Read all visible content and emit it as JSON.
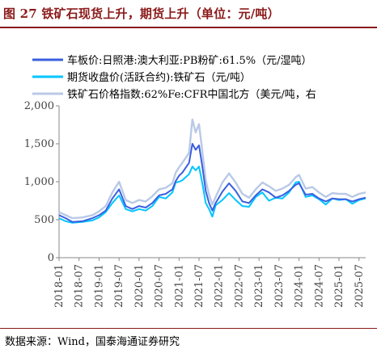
{
  "figure": {
    "title": "图 27 铁矿石现货上升，期货上升（单位：元/吨）",
    "source": "数据来源：Wind，国泰海通证券研究"
  },
  "chart_data": {
    "type": "line",
    "ylim": [
      0,
      2000
    ],
    "yticks": [
      "0",
      "500",
      "1,000",
      "1,500",
      "2,000"
    ],
    "xtick_labels": [
      "2018-01",
      "2018-07",
      "2019-01",
      "2019-07",
      "2020-01",
      "2020-07",
      "2021-01",
      "2021-07",
      "2022-01",
      "2022-07",
      "2023-01",
      "2023-07",
      "2024-01",
      "2024-07",
      "2025-01",
      "2025-07"
    ],
    "x_range": [
      "2018-01",
      "2025-09"
    ],
    "grid": false,
    "legend_position": "top-left",
    "series": [
      {
        "name": "车板价:日照港:澳大利亚:PB粉矿:61.5%（元/湿吨）",
        "color": "#3a5fe0",
        "points": [
          [
            "2018-01",
            560
          ],
          [
            "2018-03",
            520
          ],
          [
            "2018-05",
            470
          ],
          [
            "2018-08",
            480
          ],
          [
            "2018-11",
            520
          ],
          [
            "2019-01",
            560
          ],
          [
            "2019-03",
            620
          ],
          [
            "2019-05",
            780
          ],
          [
            "2019-07",
            900
          ],
          [
            "2019-09",
            680
          ],
          [
            "2019-11",
            640
          ],
          [
            "2020-01",
            680
          ],
          [
            "2020-03",
            660
          ],
          [
            "2020-05",
            720
          ],
          [
            "2020-07",
            820
          ],
          [
            "2020-09",
            840
          ],
          [
            "2020-11",
            900
          ],
          [
            "2020-12",
            1010
          ],
          [
            "2021-01",
            1080
          ],
          [
            "2021-02",
            1120
          ],
          [
            "2021-04",
            1250
          ],
          [
            "2021-05",
            1500
          ],
          [
            "2021-06",
            1420
          ],
          [
            "2021-07",
            1480
          ],
          [
            "2021-08",
            1200
          ],
          [
            "2021-09",
            880
          ],
          [
            "2021-10",
            720
          ],
          [
            "2021-11",
            620
          ],
          [
            "2021-12",
            720
          ],
          [
            "2022-02",
            870
          ],
          [
            "2022-04",
            980
          ],
          [
            "2022-06",
            880
          ],
          [
            "2022-08",
            740
          ],
          [
            "2022-10",
            720
          ],
          [
            "2022-12",
            820
          ],
          [
            "2023-02",
            900
          ],
          [
            "2023-04",
            860
          ],
          [
            "2023-06",
            790
          ],
          [
            "2023-08",
            820
          ],
          [
            "2023-10",
            880
          ],
          [
            "2023-12",
            960
          ],
          [
            "2024-01",
            980
          ],
          [
            "2024-03",
            830
          ],
          [
            "2024-05",
            840
          ],
          [
            "2024-07",
            780
          ],
          [
            "2024-09",
            740
          ],
          [
            "2024-11",
            780
          ],
          [
            "2025-01",
            770
          ],
          [
            "2025-03",
            770
          ],
          [
            "2025-05",
            740
          ],
          [
            "2025-07",
            770
          ],
          [
            "2025-09",
            790
          ]
        ]
      },
      {
        "name": "期货收盘价(活跃合约):铁矿石（元/吨）",
        "color": "#00c5ff",
        "points": [
          [
            "2018-01",
            520
          ],
          [
            "2018-03",
            480
          ],
          [
            "2018-05",
            460
          ],
          [
            "2018-08",
            470
          ],
          [
            "2018-11",
            490
          ],
          [
            "2019-01",
            530
          ],
          [
            "2019-03",
            600
          ],
          [
            "2019-05",
            720
          ],
          [
            "2019-07",
            820
          ],
          [
            "2019-09",
            640
          ],
          [
            "2019-11",
            610
          ],
          [
            "2020-01",
            640
          ],
          [
            "2020-03",
            620
          ],
          [
            "2020-05",
            680
          ],
          [
            "2020-07",
            800
          ],
          [
            "2020-09",
            780
          ],
          [
            "2020-11",
            860
          ],
          [
            "2020-12",
            990
          ],
          [
            "2021-01",
            1000
          ],
          [
            "2021-02",
            1020
          ],
          [
            "2021-04",
            1100
          ],
          [
            "2021-05",
            1200
          ],
          [
            "2021-06",
            1150
          ],
          [
            "2021-07",
            1200
          ],
          [
            "2021-08",
            980
          ],
          [
            "2021-09",
            720
          ],
          [
            "2021-10",
            640
          ],
          [
            "2021-11",
            540
          ],
          [
            "2021-12",
            690
          ],
          [
            "2022-02",
            760
          ],
          [
            "2022-04",
            850
          ],
          [
            "2022-06",
            760
          ],
          [
            "2022-08",
            680
          ],
          [
            "2022-10",
            670
          ],
          [
            "2022-12",
            800
          ],
          [
            "2023-02",
            860
          ],
          [
            "2023-04",
            750
          ],
          [
            "2023-06",
            790
          ],
          [
            "2023-08",
            780
          ],
          [
            "2023-10",
            860
          ],
          [
            "2023-12",
            990
          ],
          [
            "2024-01",
            1000
          ],
          [
            "2024-03",
            800
          ],
          [
            "2024-05",
            820
          ],
          [
            "2024-07",
            770
          ],
          [
            "2024-09",
            700
          ],
          [
            "2024-11",
            780
          ],
          [
            "2025-01",
            760
          ],
          [
            "2025-03",
            770
          ],
          [
            "2025-05",
            710
          ],
          [
            "2025-07",
            760
          ],
          [
            "2025-09",
            780
          ]
        ]
      },
      {
        "name": "铁矿石价格指数:62%Fe:CFR中国北方（美元/吨，右",
        "color": "#b9c9e6",
        "points": [
          [
            "2018-01",
            600
          ],
          [
            "2018-03",
            560
          ],
          [
            "2018-05",
            520
          ],
          [
            "2018-08",
            530
          ],
          [
            "2018-11",
            560
          ],
          [
            "2019-01",
            610
          ],
          [
            "2019-03",
            680
          ],
          [
            "2019-05",
            860
          ],
          [
            "2019-07",
            1000
          ],
          [
            "2019-09",
            760
          ],
          [
            "2019-11",
            720
          ],
          [
            "2020-01",
            760
          ],
          [
            "2020-03",
            740
          ],
          [
            "2020-05",
            810
          ],
          [
            "2020-07",
            900
          ],
          [
            "2020-09",
            920
          ],
          [
            "2020-11",
            980
          ],
          [
            "2020-12",
            1120
          ],
          [
            "2021-01",
            1190
          ],
          [
            "2021-02",
            1250
          ],
          [
            "2021-04",
            1380
          ],
          [
            "2021-05",
            1820
          ],
          [
            "2021-06",
            1650
          ],
          [
            "2021-07",
            1760
          ],
          [
            "2021-08",
            1400
          ],
          [
            "2021-09",
            1020
          ],
          [
            "2021-10",
            830
          ],
          [
            "2021-11",
            700
          ],
          [
            "2021-12",
            800
          ],
          [
            "2022-02",
            990
          ],
          [
            "2022-04",
            1110
          ],
          [
            "2022-06",
            990
          ],
          [
            "2022-08",
            840
          ],
          [
            "2022-10",
            790
          ],
          [
            "2022-12",
            900
          ],
          [
            "2023-02",
            990
          ],
          [
            "2023-04",
            940
          ],
          [
            "2023-06",
            880
          ],
          [
            "2023-08",
            910
          ],
          [
            "2023-10",
            960
          ],
          [
            "2023-12",
            1060
          ],
          [
            "2024-01",
            1090
          ],
          [
            "2024-03",
            910
          ],
          [
            "2024-05",
            930
          ],
          [
            "2024-07",
            860
          ],
          [
            "2024-09",
            800
          ],
          [
            "2024-11",
            850
          ],
          [
            "2025-01",
            840
          ],
          [
            "2025-03",
            840
          ],
          [
            "2025-05",
            800
          ],
          [
            "2025-07",
            840
          ],
          [
            "2025-09",
            860
          ]
        ]
      }
    ]
  }
}
